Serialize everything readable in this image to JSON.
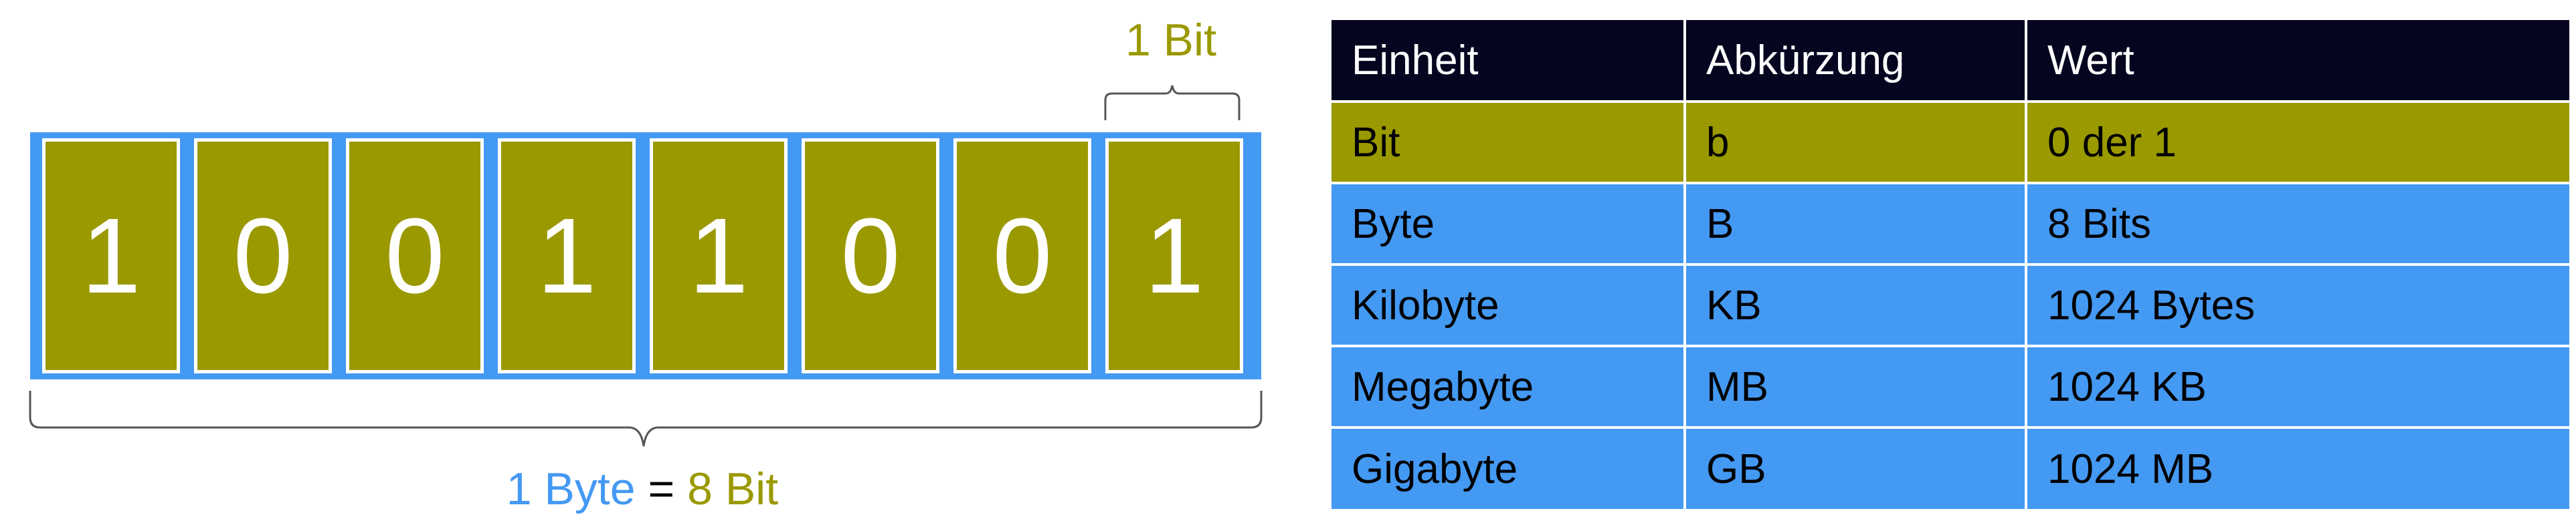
{
  "colors": {
    "bit_olive": "#9a9900",
    "byte_blue": "#4499f2",
    "header_dark": "#050520",
    "text_black": "#000000",
    "text_white": "#ffffff"
  },
  "diagram": {
    "bits": [
      "1",
      "0",
      "0",
      "1",
      "1",
      "0",
      "0",
      "1"
    ],
    "bit_label": "1 Bit",
    "byte_label": {
      "left": "1 Byte",
      "equals": "=",
      "right": "8 Bit"
    }
  },
  "table": {
    "headers": [
      "Einheit",
      "Abkürzung",
      "Wert"
    ],
    "rows": [
      {
        "unit": "Bit",
        "abbr": "b",
        "value": "0 der 1",
        "highlight": "bit_olive"
      },
      {
        "unit": "Byte",
        "abbr": "B",
        "value": "8 Bits",
        "highlight": "byte_blue"
      },
      {
        "unit": "Kilobyte",
        "abbr": "KB",
        "value": "1024 Bytes",
        "highlight": "byte_blue"
      },
      {
        "unit": "Megabyte",
        "abbr": "MB",
        "value": "1024 KB",
        "highlight": "byte_blue"
      },
      {
        "unit": "Gigabyte",
        "abbr": "GB",
        "value": "1024 MB",
        "highlight": "byte_blue"
      }
    ]
  }
}
